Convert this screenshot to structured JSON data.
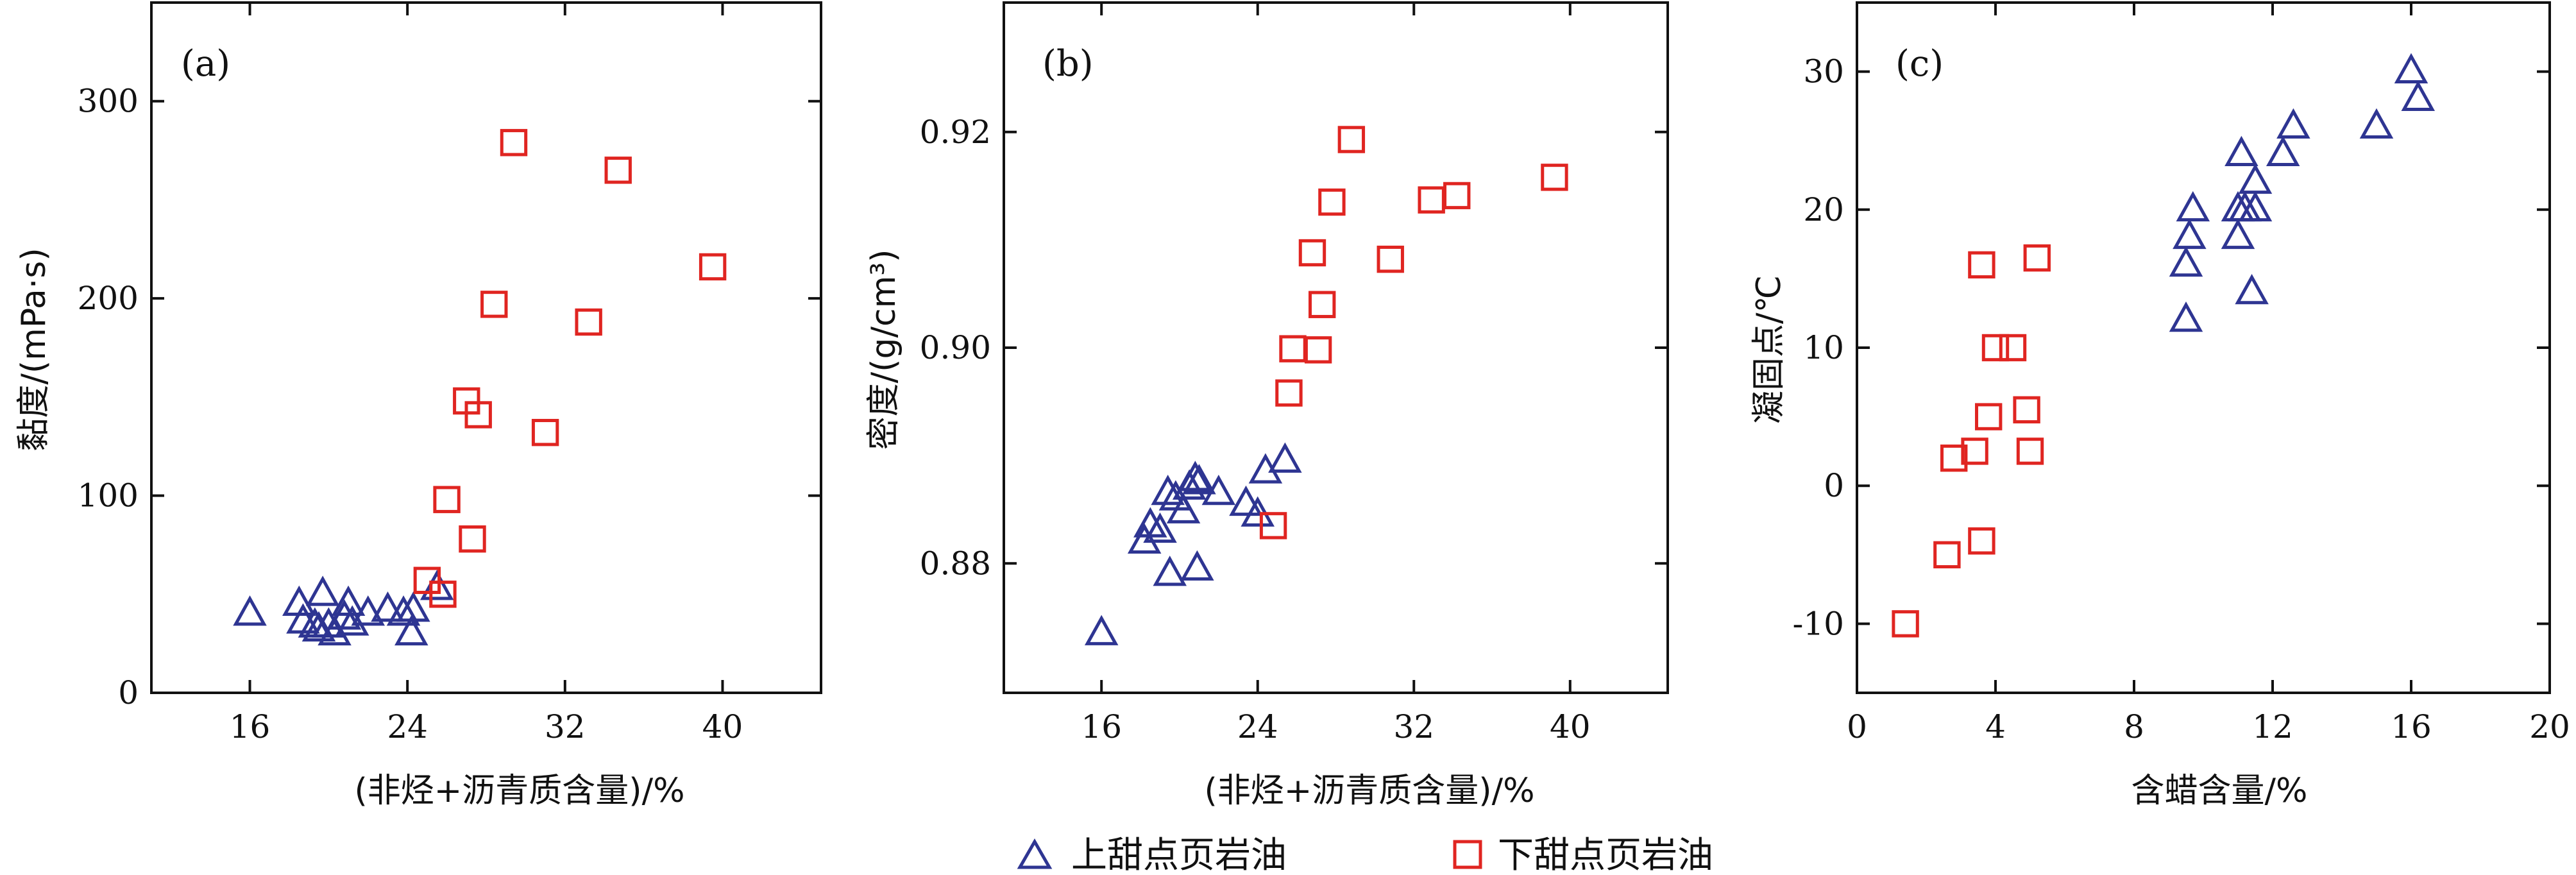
{
  "colors": {
    "upper": "#2e3592",
    "lower": "#e02521"
  },
  "legend": {
    "items": [
      {
        "label": "上甜点页岩油",
        "marker": "triangle",
        "color": "#2e3592"
      },
      {
        "label": "下甜点页岩油",
        "marker": "square",
        "color": "#e02521"
      }
    ]
  },
  "chart_data": [
    {
      "type": "scatter",
      "panel_label": "(a)",
      "xlabel": "(非烃+沥青质含量)/%",
      "ylabel": "黏度/(mPa·s)",
      "xlim": [
        11,
        45
      ],
      "ylim": [
        0,
        350
      ],
      "xticks": [
        16,
        24,
        32,
        40
      ],
      "yticks": [
        0,
        100,
        200,
        300
      ],
      "series": [
        {
          "name": "上甜点页岩油",
          "marker": "triangle",
          "points": [
            {
              "x": 16.0,
              "y": 40
            },
            {
              "x": 18.5,
              "y": 45
            },
            {
              "x": 18.7,
              "y": 36
            },
            {
              "x": 19.3,
              "y": 34
            },
            {
              "x": 19.5,
              "y": 32
            },
            {
              "x": 19.7,
              "y": 50
            },
            {
              "x": 20.0,
              "y": 34
            },
            {
              "x": 20.3,
              "y": 30
            },
            {
              "x": 20.8,
              "y": 38
            },
            {
              "x": 21.0,
              "y": 45
            },
            {
              "x": 21.2,
              "y": 35
            },
            {
              "x": 22.0,
              "y": 40
            },
            {
              "x": 23.0,
              "y": 42
            },
            {
              "x": 23.8,
              "y": 40
            },
            {
              "x": 24.3,
              "y": 42
            },
            {
              "x": 24.2,
              "y": 30
            },
            {
              "x": 25.5,
              "y": 53
            }
          ]
        },
        {
          "name": "下甜点页岩油",
          "marker": "square",
          "points": [
            {
              "x": 25.0,
              "y": 57
            },
            {
              "x": 25.8,
              "y": 50
            },
            {
              "x": 26.0,
              "y": 98
            },
            {
              "x": 27.0,
              "y": 148
            },
            {
              "x": 27.3,
              "y": 78
            },
            {
              "x": 27.6,
              "y": 141
            },
            {
              "x": 28.4,
              "y": 197
            },
            {
              "x": 29.4,
              "y": 279
            },
            {
              "x": 31.0,
              "y": 132
            },
            {
              "x": 33.2,
              "y": 188
            },
            {
              "x": 34.7,
              "y": 265
            },
            {
              "x": 39.5,
              "y": 216
            }
          ]
        }
      ]
    },
    {
      "type": "scatter",
      "panel_label": "(b)",
      "xlabel": "(非烃+沥青质含量)/%",
      "ylabel": "密度/(g/cm³)",
      "xlim": [
        11,
        45
      ],
      "ylim": [
        0.868,
        0.932
      ],
      "xticks": [
        16,
        24,
        32,
        40
      ],
      "yticks": [
        0.88,
        0.9,
        0.92
      ],
      "ytick_labels": [
        "0.88",
        "0.90",
        "0.92"
      ],
      "series": [
        {
          "name": "上甜点页岩油",
          "marker": "triangle",
          "points": [
            {
              "x": 16.0,
              "y": 0.8735
            },
            {
              "x": 18.2,
              "y": 0.882
            },
            {
              "x": 18.5,
              "y": 0.8835
            },
            {
              "x": 19.0,
              "y": 0.883
            },
            {
              "x": 19.5,
              "y": 0.879
            },
            {
              "x": 19.4,
              "y": 0.8865
            },
            {
              "x": 19.8,
              "y": 0.886
            },
            {
              "x": 20.2,
              "y": 0.8848
            },
            {
              "x": 20.5,
              "y": 0.887
            },
            {
              "x": 20.8,
              "y": 0.8878
            },
            {
              "x": 21.0,
              "y": 0.8875
            },
            {
              "x": 20.9,
              "y": 0.8795
            },
            {
              "x": 22.0,
              "y": 0.8865
            },
            {
              "x": 23.4,
              "y": 0.8855
            },
            {
              "x": 24.0,
              "y": 0.8845
            },
            {
              "x": 24.4,
              "y": 0.8885
            },
            {
              "x": 25.4,
              "y": 0.8895
            }
          ]
        },
        {
          "name": "下甜点页岩油",
          "marker": "square",
          "points": [
            {
              "x": 24.8,
              "y": 0.8835
            },
            {
              "x": 25.6,
              "y": 0.8958
            },
            {
              "x": 25.8,
              "y": 0.8999
            },
            {
              "x": 26.8,
              "y": 0.9088
            },
            {
              "x": 27.1,
              "y": 0.8998
            },
            {
              "x": 27.3,
              "y": 0.904
            },
            {
              "x": 27.8,
              "y": 0.9135
            },
            {
              "x": 28.8,
              "y": 0.9193
            },
            {
              "x": 30.8,
              "y": 0.9082
            },
            {
              "x": 32.9,
              "y": 0.9137
            },
            {
              "x": 34.2,
              "y": 0.9141
            },
            {
              "x": 39.2,
              "y": 0.9158
            }
          ]
        }
      ]
    },
    {
      "type": "scatter",
      "panel_label": "(c)",
      "xlabel": "含蜡含量/%",
      "ylabel": "凝固点/℃",
      "xlim": [
        0,
        20
      ],
      "ylim": [
        -15,
        35
      ],
      "xticks": [
        0,
        4,
        8,
        12,
        16,
        20
      ],
      "yticks": [
        -10,
        0,
        10,
        20,
        30
      ],
      "series": [
        {
          "name": "上甜点页岩油",
          "marker": "triangle",
          "points": [
            {
              "x": 9.5,
              "y": 12
            },
            {
              "x": 9.5,
              "y": 16
            },
            {
              "x": 9.6,
              "y": 18
            },
            {
              "x": 9.7,
              "y": 20
            },
            {
              "x": 11.0,
              "y": 18
            },
            {
              "x": 11.0,
              "y": 20
            },
            {
              "x": 11.1,
              "y": 24
            },
            {
              "x": 11.2,
              "y": 20
            },
            {
              "x": 11.4,
              "y": 14
            },
            {
              "x": 11.5,
              "y": 22
            },
            {
              "x": 11.5,
              "y": 20
            },
            {
              "x": 12.3,
              "y": 24
            },
            {
              "x": 12.6,
              "y": 26
            },
            {
              "x": 15.0,
              "y": 26
            },
            {
              "x": 16.0,
              "y": 30
            },
            {
              "x": 16.2,
              "y": 28
            }
          ]
        },
        {
          "name": "下甜点页岩油",
          "marker": "square",
          "points": [
            {
              "x": 1.4,
              "y": -10
            },
            {
              "x": 2.6,
              "y": -5
            },
            {
              "x": 2.8,
              "y": 2
            },
            {
              "x": 3.4,
              "y": 2.5
            },
            {
              "x": 3.6,
              "y": -4
            },
            {
              "x": 3.6,
              "y": 16
            },
            {
              "x": 3.8,
              "y": 5
            },
            {
              "x": 4.0,
              "y": 10
            },
            {
              "x": 4.5,
              "y": 10
            },
            {
              "x": 4.9,
              "y": 5.5
            },
            {
              "x": 5.0,
              "y": 2.5
            },
            {
              "x": 5.2,
              "y": 16.5
            }
          ]
        }
      ]
    }
  ]
}
